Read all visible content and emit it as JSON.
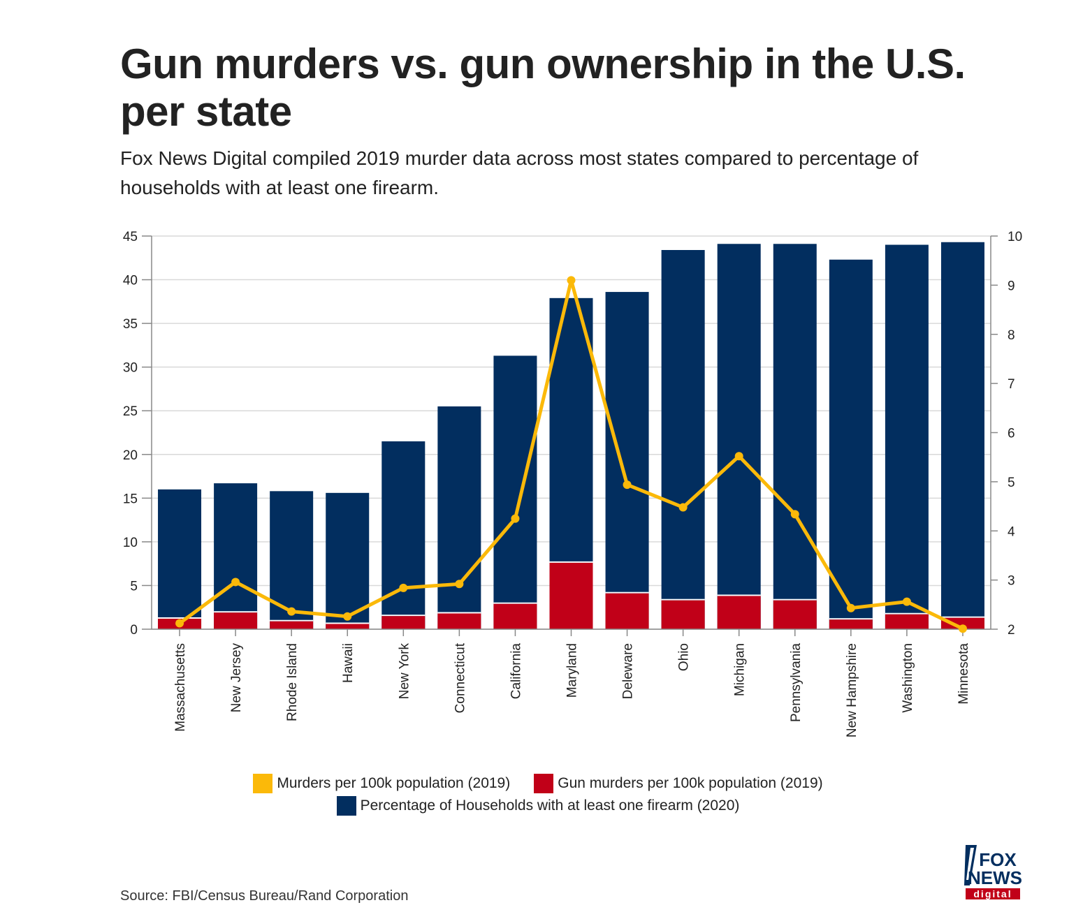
{
  "title": "Gun murders vs. gun ownership in the U.S. per state",
  "subtitle": "Fox News Digital compiled 2019 murder data across most states compared to percentage of households with at least one firearm.",
  "source": "Source: FBI/Census Bureau/Rand Corporation",
  "logo": {
    "line1": "FOX",
    "line2": "NEWS",
    "line3": "digital"
  },
  "colors": {
    "households": "#022e5f",
    "gun_murders": "#c10018",
    "murders": "#fbb909",
    "grid": "#d9d9d9",
    "axis": "#888888"
  },
  "legend": [
    {
      "label": "Murders per 100k population (2019)",
      "color": "#fbb909"
    },
    {
      "label": "Gun murders per 100k population (2019)",
      "color": "#c10018"
    },
    {
      "label": "Percentage of Households with at least one firearm (2020)",
      "color": "#022e5f"
    }
  ],
  "chart_data": {
    "type": "bar",
    "categories": [
      "Massachusetts",
      "New Jersey",
      "Rhode Island",
      "Hawaii",
      "New York",
      "Connecticut",
      "California",
      "Maryland",
      "Deleware",
      "Ohio",
      "Michigan",
      "Pennsylvania",
      "New Hampshire",
      "Washington",
      "Minnesota"
    ],
    "left_axis": {
      "ylim": [
        0,
        45
      ],
      "ticks": [
        0,
        5,
        10,
        15,
        20,
        25,
        30,
        35,
        40,
        45
      ]
    },
    "right_axis": {
      "ylim": [
        2,
        10
      ],
      "ticks": [
        2,
        3,
        4,
        5,
        6,
        7,
        8,
        9,
        10
      ]
    },
    "series": [
      {
        "name": "Percentage of Households with at least one firearm (2020)",
        "type": "bar",
        "axis": "left",
        "values": [
          16.0,
          16.7,
          15.8,
          15.6,
          21.5,
          25.5,
          31.3,
          37.9,
          38.6,
          43.4,
          44.1,
          44.1,
          42.3,
          44.0,
          44.3
        ]
      },
      {
        "name": "Gun murders per 100k population (2019)",
        "type": "bar",
        "axis": "left",
        "values": [
          1.2,
          1.9,
          0.9,
          0.6,
          1.5,
          1.8,
          2.9,
          7.6,
          4.1,
          3.3,
          3.8,
          3.3,
          1.1,
          1.7,
          1.3
        ]
      },
      {
        "name": "Murders per 100k population (2019)",
        "type": "line",
        "axis": "right",
        "values": [
          2.12,
          2.96,
          2.36,
          2.26,
          2.84,
          2.92,
          4.25,
          9.1,
          4.94,
          4.48,
          5.52,
          4.34,
          2.43,
          2.56,
          2.01
        ]
      }
    ]
  }
}
